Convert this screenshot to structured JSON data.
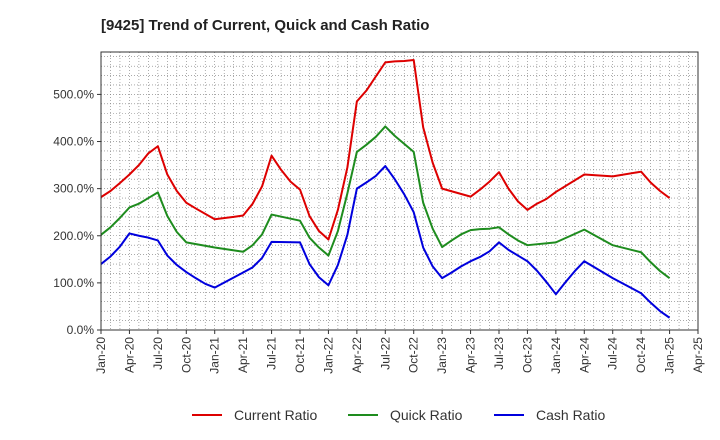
{
  "chart_data": {
    "type": "line",
    "title": "[9425]  Trend of Current, Quick and Cash Ratio",
    "xlabel": "",
    "ylabel": "",
    "ylim": [
      0,
      590
    ],
    "yticks": [
      0,
      100,
      200,
      300,
      400,
      500
    ],
    "ytick_labels": [
      "0.0%",
      "100.0%",
      "200.0%",
      "300.0%",
      "400.0%",
      "500.0%"
    ],
    "x_months_range": [
      0,
      63
    ],
    "xticks": [
      0,
      3,
      6,
      9,
      12,
      15,
      18,
      21,
      24,
      27,
      30,
      33,
      36,
      39,
      42,
      45,
      48,
      51,
      54,
      57,
      60,
      63
    ],
    "xtick_labels": [
      "Jan-20",
      "Apr-20",
      "Jul-20",
      "Oct-20",
      "Jan-21",
      "Apr-21",
      "Jul-21",
      "Oct-21",
      "Jan-22",
      "Apr-22",
      "Jul-22",
      "Oct-22",
      "Jan-23",
      "Apr-23",
      "Jul-23",
      "Oct-23",
      "Jan-24",
      "Apr-24",
      "Jul-24",
      "Oct-24",
      "Jan-25",
      "Apr-25"
    ],
    "grid": true,
    "legend_position": "bottom",
    "series": [
      {
        "name": "Current Ratio",
        "color": "#dd0000",
        "x": [
          0,
          1,
          2,
          3,
          4,
          5,
          6,
          7,
          8,
          9,
          10,
          12,
          14,
          15,
          16,
          17,
          18,
          19,
          20,
          21,
          22,
          23,
          24,
          25,
          26,
          27,
          28,
          29,
          30,
          31,
          32,
          33,
          34,
          35,
          36,
          39,
          40,
          41,
          42,
          43,
          44,
          45,
          46,
          47,
          48,
          51,
          54,
          57,
          58,
          59,
          60
        ],
        "values": [
          282,
          295,
          312,
          330,
          350,
          375,
          390,
          330,
          295,
          270,
          258,
          235,
          240,
          243,
          268,
          305,
          370,
          340,
          315,
          298,
          242,
          210,
          192,
          255,
          345,
          485,
          508,
          538,
          568,
          570,
          571,
          573,
          430,
          355,
          300,
          283,
          298,
          315,
          335,
          300,
          273,
          255,
          268,
          278,
          293,
          330,
          326,
          336,
          313,
          295,
          280
        ]
      },
      {
        "name": "Quick Ratio",
        "color": "#1e8c1e",
        "x": [
          0,
          1,
          2,
          3,
          4,
          5,
          6,
          7,
          8,
          9,
          12,
          15,
          16,
          17,
          18,
          21,
          22,
          23,
          24,
          25,
          26,
          27,
          28,
          29,
          30,
          31,
          32,
          33,
          34,
          35,
          36,
          37,
          38,
          39,
          40,
          41,
          42,
          43,
          44,
          45,
          48,
          51,
          54,
          57,
          58,
          59,
          60
        ],
        "values": [
          202,
          218,
          238,
          260,
          268,
          280,
          292,
          242,
          208,
          186,
          175,
          166,
          180,
          203,
          245,
          232,
          196,
          175,
          158,
          210,
          290,
          378,
          393,
          410,
          432,
          412,
          395,
          378,
          270,
          215,
          176,
          190,
          203,
          212,
          214,
          215,
          218,
          203,
          190,
          180,
          186,
          213,
          180,
          165,
          144,
          125,
          110
        ]
      },
      {
        "name": "Cash Ratio",
        "color": "#0000dd",
        "x": [
          0,
          1,
          2,
          3,
          4,
          5,
          6,
          7,
          8,
          9,
          10,
          11,
          12,
          15,
          16,
          17,
          18,
          21,
          22,
          23,
          24,
          25,
          26,
          27,
          28,
          29,
          30,
          31,
          32,
          33,
          34,
          35,
          36,
          37,
          38,
          39,
          40,
          41,
          42,
          43,
          44,
          45,
          46,
          47,
          48,
          49,
          50,
          51,
          54,
          57,
          58,
          59,
          60
        ],
        "values": [
          140,
          156,
          177,
          205,
          200,
          196,
          190,
          158,
          138,
          123,
          110,
          98,
          90,
          122,
          133,
          153,
          187,
          186,
          140,
          112,
          95,
          138,
          202,
          300,
          313,
          327,
          348,
          320,
          288,
          250,
          175,
          135,
          110,
          122,
          135,
          146,
          155,
          167,
          186,
          170,
          158,
          146,
          126,
          102,
          76,
          101,
          125,
          146,
          110,
          78,
          58,
          40,
          26
        ]
      }
    ]
  }
}
